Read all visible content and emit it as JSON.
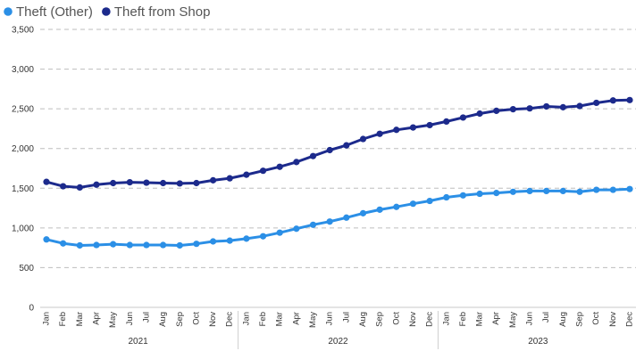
{
  "chart_data": {
    "type": "line",
    "ylim": [
      0,
      3500
    ],
    "yticks": [
      "0",
      "500",
      "1,000",
      "1,500",
      "2,000",
      "2,500",
      "3,000",
      "3,500"
    ],
    "grid": true,
    "legend_position": "top-left",
    "categories": [
      "Jan",
      "Feb",
      "Mar",
      "Apr",
      "May",
      "Jun",
      "Jul",
      "Aug",
      "Sep",
      "Oct",
      "Nov",
      "Dec",
      "Jan",
      "Feb",
      "Mar",
      "Apr",
      "May",
      "Jun",
      "Jul",
      "Aug",
      "Sep",
      "Oct",
      "Nov",
      "Dec",
      "Jan",
      "Feb",
      "Mar",
      "Apr",
      "May",
      "Jun",
      "Jul",
      "Aug",
      "Sep",
      "Oct",
      "Nov",
      "Dec"
    ],
    "years": [
      "2021",
      "2022",
      "2023"
    ],
    "series": [
      {
        "name": "Theft (Other)",
        "color": "#2b8fe6",
        "values": [
          855,
          805,
          780,
          785,
          795,
          785,
          785,
          785,
          780,
          800,
          830,
          840,
          865,
          895,
          940,
          990,
          1040,
          1080,
          1130,
          1185,
          1230,
          1265,
          1305,
          1340,
          1385,
          1410,
          1430,
          1440,
          1455,
          1465,
          1465,
          1465,
          1455,
          1480,
          1480,
          1490
        ]
      },
      {
        "name": "Theft from Shop",
        "color": "#1c2a8c",
        "values": [
          1580,
          1525,
          1510,
          1545,
          1565,
          1575,
          1570,
          1565,
          1560,
          1565,
          1600,
          1625,
          1670,
          1720,
          1770,
          1830,
          1905,
          1980,
          2040,
          2120,
          2185,
          2235,
          2265,
          2295,
          2340,
          2390,
          2440,
          2475,
          2495,
          2505,
          2530,
          2520,
          2535,
          2575,
          2605,
          2610
        ]
      }
    ]
  }
}
